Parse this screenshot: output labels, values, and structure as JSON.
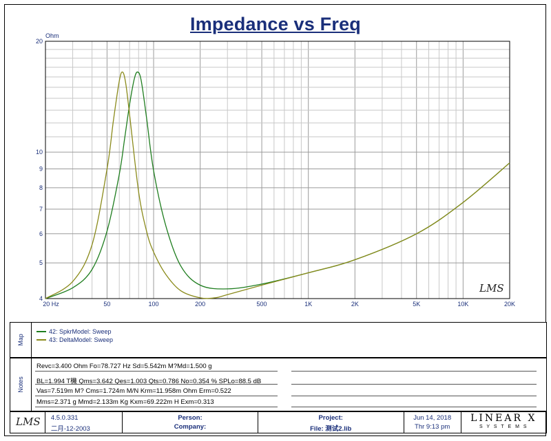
{
  "chart_data": {
    "type": "line",
    "title": "Impedance vs Freq",
    "ylabel": "Ohm",
    "xscale": "log",
    "yscale": "log",
    "xlim": [
      20,
      20000
    ],
    "ylim": [
      4,
      20
    ],
    "x_ticks": [
      {
        "v": 20,
        "label": "20  Hz"
      },
      {
        "v": 50,
        "label": "50"
      },
      {
        "v": 100,
        "label": "100"
      },
      {
        "v": 200,
        "label": "200"
      },
      {
        "v": 500,
        "label": "500"
      },
      {
        "v": 1000,
        "label": "1K"
      },
      {
        "v": 2000,
        "label": "2K"
      },
      {
        "v": 5000,
        "label": "5K"
      },
      {
        "v": 10000,
        "label": "10K"
      },
      {
        "v": 20000,
        "label": "20K"
      }
    ],
    "y_ticks": [
      {
        "v": 4,
        "label": "4"
      },
      {
        "v": 5,
        "label": "5"
      },
      {
        "v": 6,
        "label": "6"
      },
      {
        "v": 7,
        "label": "7"
      },
      {
        "v": 8,
        "label": "8"
      },
      {
        "v": 9,
        "label": "9"
      },
      {
        "v": 10,
        "label": "10"
      },
      {
        "v": 20,
        "label": "20"
      }
    ],
    "grid": true,
    "series": [
      {
        "name": "42: SpkrModel: Sweep",
        "color": "#1e7d1e",
        "x": [
          20,
          30,
          40,
          50,
          60,
          65,
          70,
          75,
          78.7,
          83,
          90,
          100,
          120,
          150,
          200,
          300,
          500,
          1000,
          2000,
          5000,
          10000,
          20000
        ],
        "y": [
          4.0,
          4.28,
          4.8,
          6.1,
          8.7,
          10.9,
          13.5,
          15.8,
          16.5,
          15.7,
          12.4,
          8.9,
          6.3,
          4.9,
          4.35,
          4.25,
          4.38,
          4.7,
          5.1,
          6.0,
          7.3,
          9.35
        ]
      },
      {
        "name": "43: DeltaModel: Sweep",
        "color": "#8a8a1a",
        "x": [
          20,
          30,
          40,
          50,
          55,
          60,
          63,
          66,
          70,
          80,
          90,
          100,
          120,
          150,
          200,
          250,
          300,
          500,
          1000,
          2000,
          5000,
          10000,
          20000
        ],
        "y": [
          4.0,
          4.45,
          5.6,
          9.0,
          12.2,
          15.6,
          16.5,
          15.4,
          12.6,
          7.8,
          6.1,
          5.35,
          4.65,
          4.2,
          4.02,
          4.02,
          4.1,
          4.35,
          4.7,
          5.1,
          6.0,
          7.3,
          9.35
        ]
      }
    ],
    "annotations": [
      "LMS"
    ]
  },
  "legend_tab": "Map",
  "notes_tab": "Notes",
  "notes": [
    "Revc=3.400 Ohm  Fo=78.727 Hz  Sd=5.542m M?Md=1.500 g",
    "BL=1.994 T機  Qms=3.642  Qes=1.003  Qts=0.786  No=0.354 %  SPLo=88.5 dB",
    "Vas=7.519m M? Cms=1.724m M/N  Krm=11.958m Ohm  Erm=0.522",
    "Mms=2.371 g  Mmd=2.133m Kg  Kxm=69.222m H  Exm=0.313"
  ],
  "footer": {
    "logo": "LMS",
    "version": "4.5.0.331",
    "date_built": "二月-12-2003",
    "person_label": "Person:",
    "company_label": "Company:",
    "project_label": "Project:",
    "file_label": "File: 测试2.lib",
    "date": "Jun 14, 2018",
    "time": "Thr  9:13 pm",
    "brand": "LINEAR X",
    "brand_sub": "S Y S T E M S"
  }
}
